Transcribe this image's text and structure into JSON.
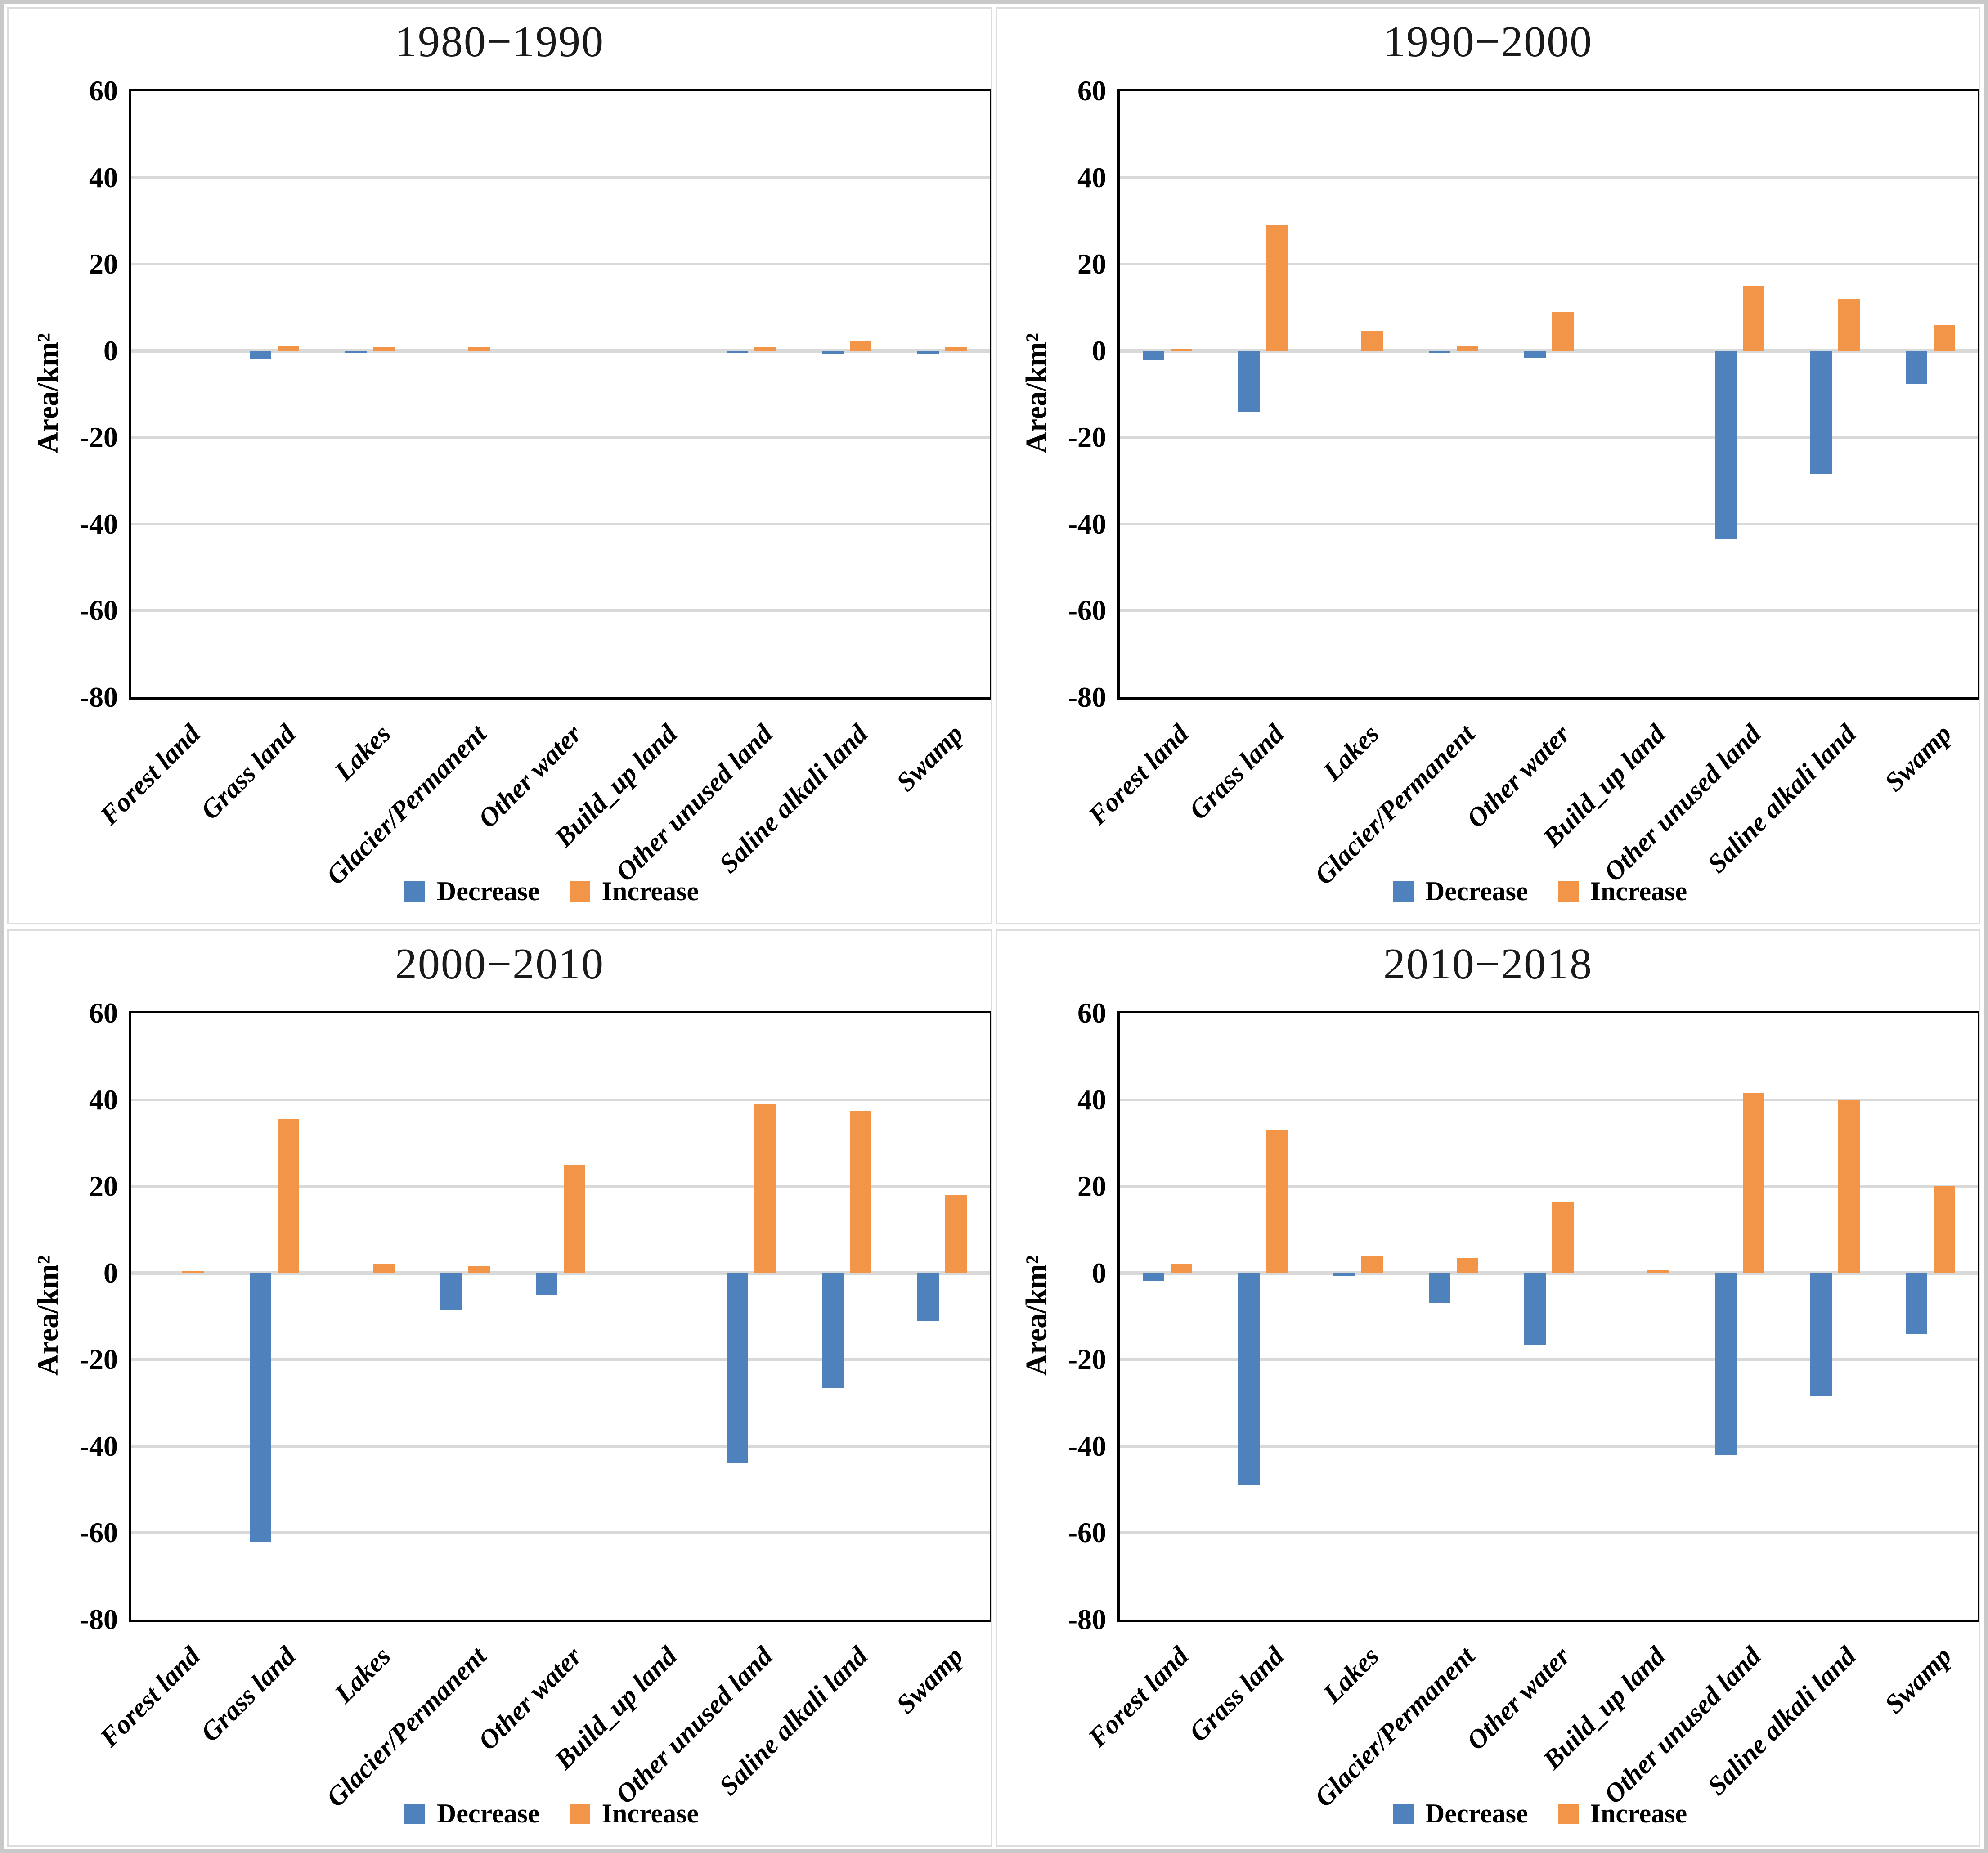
{
  "figure": {
    "description": "Four bar charts of land area decrease and increase by land-cover type for consecutive periods"
  },
  "colors": {
    "decrease": "#4F81BD",
    "increase": "#F29549",
    "gridline": "#D9D9D9",
    "axis": "#000000",
    "panel_border": "#DCDCDC"
  },
  "legend": {
    "decrease_label": "Decrease",
    "increase_label": "Increase"
  },
  "y_axis": {
    "label": "Area/km²",
    "ticks": [
      60,
      40,
      20,
      0,
      -20,
      -40,
      -60,
      -80
    ],
    "max": 60,
    "min": -80
  },
  "chart_data": [
    {
      "type": "bar",
      "title": "1980−1990",
      "ylabel": "Area/km²",
      "ylim": [
        -80,
        60
      ],
      "grid": true,
      "legend_position": "bottom",
      "categories": [
        "Forest land",
        "Grass land",
        "Lakes",
        "Glacier/Permanent",
        "Other water",
        "Build_up land",
        "Other unused land",
        "Saline alkali land",
        "Swamp"
      ],
      "series": [
        {
          "name": "Decrease",
          "values": [
            0,
            -2,
            -0.5,
            0,
            0,
            0,
            -0.6,
            -0.8,
            -0.8
          ]
        },
        {
          "name": "Increase",
          "values": [
            0,
            1,
            0.8,
            0.8,
            0,
            0,
            0.9,
            2.2,
            0.8
          ]
        }
      ]
    },
    {
      "type": "bar",
      "title": "1990−2000",
      "ylabel": "Area/km²",
      "ylim": [
        -80,
        60
      ],
      "grid": true,
      "legend_position": "bottom",
      "categories": [
        "Forest land",
        "Grass land",
        "Lakes",
        "Glacier/Permanent",
        "Other water",
        "Build_up land",
        "Other unused land",
        "Saline alkali land",
        "Swamp"
      ],
      "series": [
        {
          "name": "Decrease",
          "values": [
            -2.2,
            -14,
            0,
            -0.5,
            -1.7,
            0,
            -43.5,
            -28.5,
            -7.7
          ]
        },
        {
          "name": "Increase",
          "values": [
            0.5,
            29,
            4.5,
            1,
            9,
            0,
            15,
            12,
            6
          ]
        }
      ]
    },
    {
      "type": "bar",
      "title": "2000−2010",
      "ylabel": "Area/km²",
      "ylim": [
        -80,
        60
      ],
      "grid": true,
      "legend_position": "bottom",
      "categories": [
        "Forest land",
        "Grass land",
        "Lakes",
        "Glacier/Permanent",
        "Other water",
        "Build_up land",
        "Other unused land",
        "Saline alkali land",
        "Swamp"
      ],
      "series": [
        {
          "name": "Decrease",
          "values": [
            0,
            -62,
            0,
            -8.4,
            -5,
            0,
            -44,
            -26.5,
            -11
          ]
        },
        {
          "name": "Increase",
          "values": [
            0.5,
            35.5,
            2.2,
            1.5,
            25,
            0,
            39,
            37.5,
            18
          ]
        }
      ]
    },
    {
      "type": "bar",
      "title": "2010−2018",
      "ylabel": "Area/km²",
      "ylim": [
        -80,
        60
      ],
      "grid": true,
      "legend_position": "bottom",
      "categories": [
        "Forest land",
        "Grass land",
        "Lakes",
        "Glacier/Permanent",
        "Other water",
        "Build_up land",
        "Other unused land",
        "Saline alkali land",
        "Swamp"
      ],
      "series": [
        {
          "name": "Decrease",
          "values": [
            -1.8,
            -49,
            -0.8,
            -7,
            -16.6,
            0,
            -42,
            -28.5,
            -14
          ]
        },
        {
          "name": "Increase",
          "values": [
            2,
            33,
            4,
            3.5,
            16.3,
            0.8,
            41.5,
            40,
            20
          ]
        }
      ]
    }
  ]
}
